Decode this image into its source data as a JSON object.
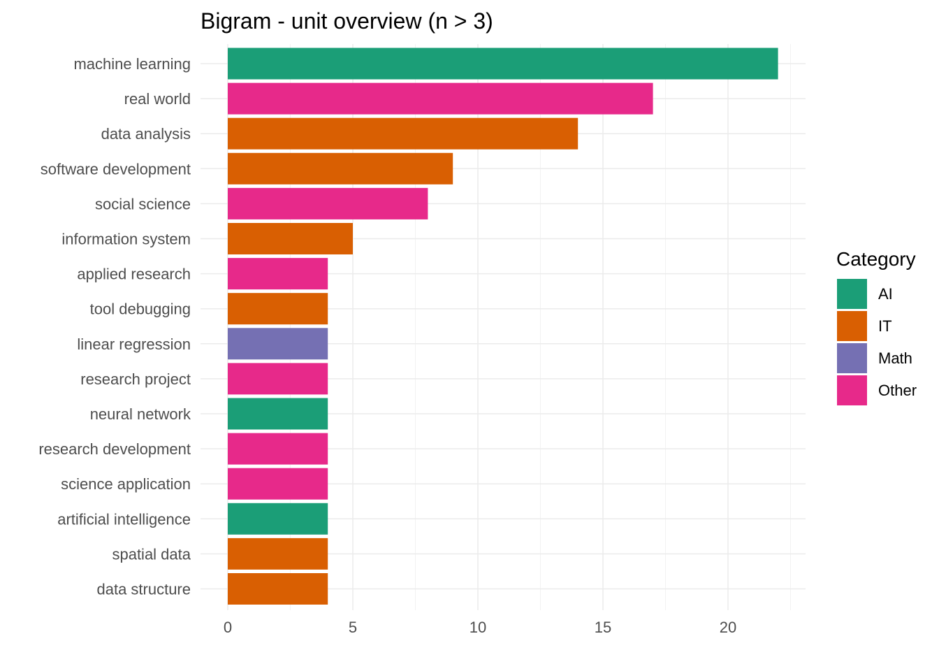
{
  "chart_data": {
    "type": "bar",
    "orientation": "horizontal",
    "title": "Bigram - unit overview (n > 3)",
    "xlabel": "",
    "ylabel": "",
    "xlim": [
      0,
      23
    ],
    "x_ticks": [
      0,
      5,
      10,
      15,
      20
    ],
    "grid": true,
    "legend_position": "right",
    "legend_title": "Category",
    "categories": [
      "machine learning",
      "real world",
      "data analysis",
      "software development",
      "social science",
      "information system",
      "applied research",
      "tool debugging",
      "linear regression",
      "research project",
      "neural network",
      "research development",
      "science application",
      "artificial intelligence",
      "spatial data",
      "data structure"
    ],
    "values": [
      22,
      17,
      14,
      9,
      8,
      5,
      4,
      4,
      4,
      4,
      4,
      4,
      4,
      4,
      4,
      4
    ],
    "groups": [
      "AI",
      "Other",
      "IT",
      "IT",
      "Other",
      "IT",
      "Other",
      "IT",
      "Math",
      "Other",
      "AI",
      "Other",
      "Other",
      "AI",
      "IT",
      "IT"
    ],
    "legend": [
      {
        "label": "AI",
        "color": "#1b9e77"
      },
      {
        "label": "IT",
        "color": "#d95f02"
      },
      {
        "label": "Math",
        "color": "#7570b3"
      },
      {
        "label": "Other",
        "color": "#e7298a"
      }
    ]
  }
}
